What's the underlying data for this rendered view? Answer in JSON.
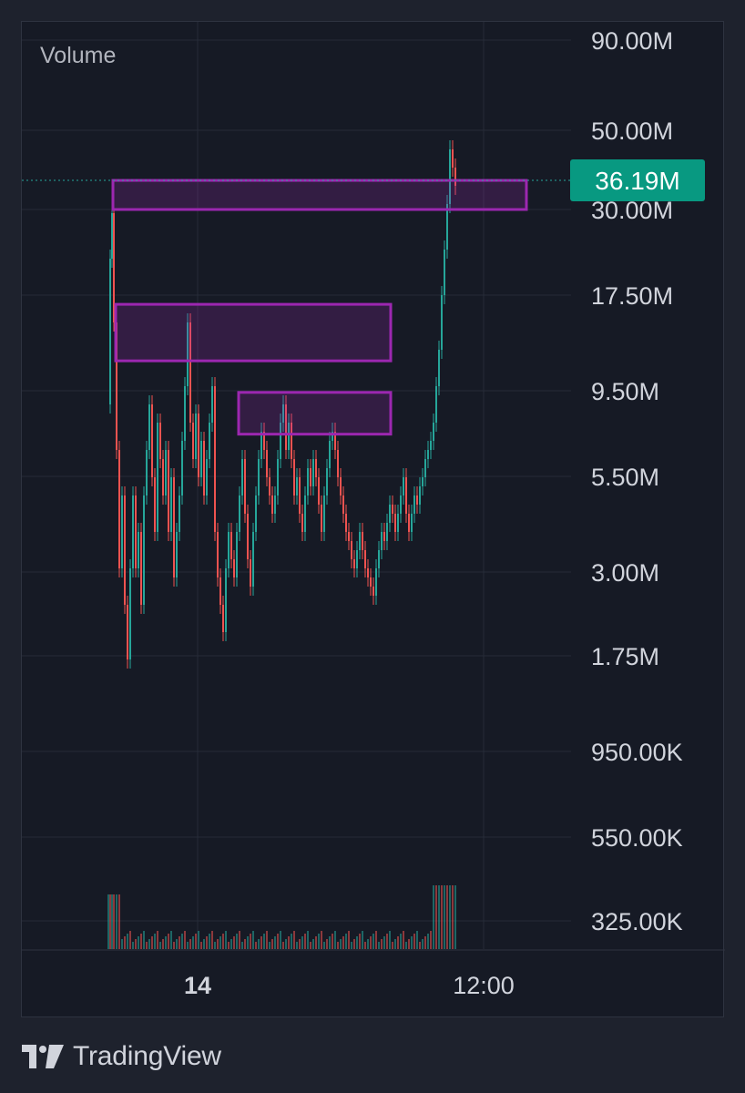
{
  "chart_data": {
    "type": "candlestick",
    "legend_label": "Volume",
    "y_scale": "log",
    "y_tick_labels": [
      "90.00M",
      "50.00M",
      "30.00M",
      "17.50M",
      "9.50M",
      "5.50M",
      "3.00M",
      "1.75M",
      "950.00K",
      "550.00K",
      "325.00K"
    ],
    "x_tick_labels": [
      "14",
      "12:00"
    ],
    "last_value_label": "36.19M",
    "last_value": 36190000,
    "colors": {
      "up": "#26a69a",
      "down": "#ef5350",
      "zone": "#9c27b0",
      "last_value_badge": "#089981",
      "grid": "#262b38",
      "background": "#161a25"
    },
    "zones": [
      {
        "from": 30000000,
        "to": 36190000
      },
      {
        "from": 11500000,
        "to": 16500000
      },
      {
        "from": 7200000,
        "to": 9400000
      }
    ],
    "grid": true
  },
  "footer": {
    "brand": "TradingView",
    "logo_icon": "tradingview-logo-icon"
  }
}
